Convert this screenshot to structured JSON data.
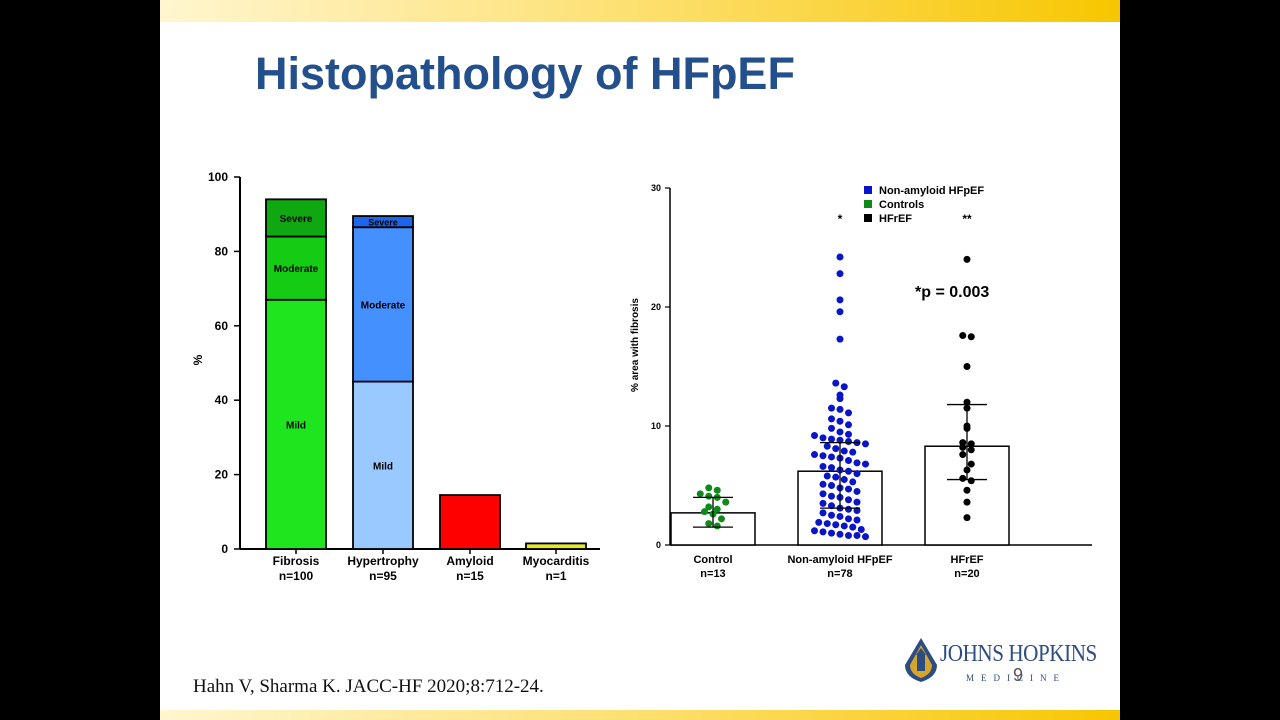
{
  "slide": {
    "title": "Histopathology of HFpEF",
    "citation": "Hahn V, Sharma K. JACC-HF 2020;8:712-24.",
    "logo": {
      "name": "JOHNS HOPKINS",
      "sub": "MEDICINE",
      "page": "9"
    }
  },
  "chart_data": [
    {
      "type": "bar",
      "stacked": true,
      "title": "",
      "ylabel": "%",
      "xlabel": "",
      "ylim": [
        0,
        100
      ],
      "yticks": [
        0,
        20,
        40,
        60,
        80,
        100
      ],
      "categories": [
        {
          "label": "Fibrosis",
          "sublabel": "n=100"
        },
        {
          "label": "Hypertrophy",
          "sublabel": "n=95"
        },
        {
          "label": "Amyloid",
          "sublabel": "n=15"
        },
        {
          "label": "Myocarditis",
          "sublabel": "n=1"
        }
      ],
      "segments": [
        [
          {
            "name": "Mild",
            "value": 67,
            "color": "#1ee51e"
          },
          {
            "name": "Moderate",
            "value": 17,
            "color": "#14cc14"
          },
          {
            "name": "Severe",
            "value": 10,
            "color": "#10a810"
          }
        ],
        [
          {
            "name": "Mild",
            "value": 45,
            "color": "#99c9ff"
          },
          {
            "name": "Moderate",
            "value": 41.5,
            "color": "#4590ff"
          },
          {
            "name": "Severe",
            "value": 3,
            "color": "#1d66ea"
          }
        ],
        [
          {
            "name": "",
            "value": 14.5,
            "color": "#ff0000"
          }
        ],
        [
          {
            "name": "",
            "value": 1.5,
            "color": "#e6e633"
          }
        ]
      ],
      "grid": false,
      "legend": "none"
    },
    {
      "type": "scatter",
      "subtype": "bar-with-dots",
      "title": "",
      "ylabel": "% area with fibrosis",
      "xlabel": "",
      "ylim": [
        0,
        30
      ],
      "yticks": [
        0,
        10,
        20,
        30
      ],
      "legend_position": "top-left",
      "legend": [
        {
          "name": "Non-amyloid HFpEF",
          "color": "#0a14c8"
        },
        {
          "name": "Controls",
          "color": "#0e8a1a"
        },
        {
          "name": "HFrEF",
          "color": "#000000"
        }
      ],
      "annotation": "*p = 0.003",
      "groups": [
        {
          "label": "Control",
          "sublabel": "n=13",
          "color": "#0e8a1a",
          "mean": 2.7,
          "sd_low": 1.5,
          "sd_high": 4.0,
          "significance": "",
          "points": [
            4.8,
            4.6,
            4.3,
            4.1,
            4.0,
            3.6,
            3.2,
            3.0,
            2.8,
            2.6,
            2.2,
            1.8,
            1.6
          ]
        },
        {
          "label": "Non-amyloid HFpEF",
          "sublabel": "n=78",
          "color": "#0a14c8",
          "mean": 6.2,
          "sd_low": 3.1,
          "sd_high": 8.6,
          "significance": "*",
          "points": [
            24.2,
            22.8,
            20.6,
            19.6,
            17.3,
            13.6,
            13.3,
            12.6,
            12.3,
            11.5,
            11.4,
            11.1,
            10.6,
            10.4,
            10.1,
            9.8,
            9.5,
            9.3,
            9.2,
            9.0,
            8.9,
            8.8,
            8.7,
            8.6,
            8.5,
            8.3,
            8.1,
            7.9,
            7.8,
            7.6,
            7.5,
            7.4,
            7.3,
            7.1,
            6.9,
            6.8,
            6.6,
            6.5,
            6.3,
            6.2,
            6.0,
            5.8,
            5.7,
            5.5,
            5.3,
            5.1,
            5.0,
            4.8,
            4.7,
            4.5,
            4.3,
            4.1,
            4.0,
            3.8,
            3.6,
            3.5,
            3.3,
            3.1,
            3.0,
            2.9,
            2.7,
            2.5,
            2.4,
            2.2,
            2.1,
            1.9,
            1.8,
            1.7,
            1.6,
            1.5,
            1.3,
            1.2,
            1.1,
            1.0,
            0.9,
            0.8,
            0.8,
            0.7
          ]
        },
        {
          "label": "HFrEF",
          "sublabel": "n=20",
          "color": "#000000",
          "mean": 8.3,
          "sd_low": 5.5,
          "sd_high": 11.8,
          "significance": "**",
          "points": [
            24.0,
            17.6,
            17.5,
            15.0,
            12.0,
            11.5,
            10.0,
            9.8,
            8.6,
            8.5,
            8.2,
            8.0,
            7.6,
            6.8,
            6.3,
            5.6,
            5.4,
            4.6,
            3.6,
            2.3
          ]
        }
      ]
    }
  ]
}
